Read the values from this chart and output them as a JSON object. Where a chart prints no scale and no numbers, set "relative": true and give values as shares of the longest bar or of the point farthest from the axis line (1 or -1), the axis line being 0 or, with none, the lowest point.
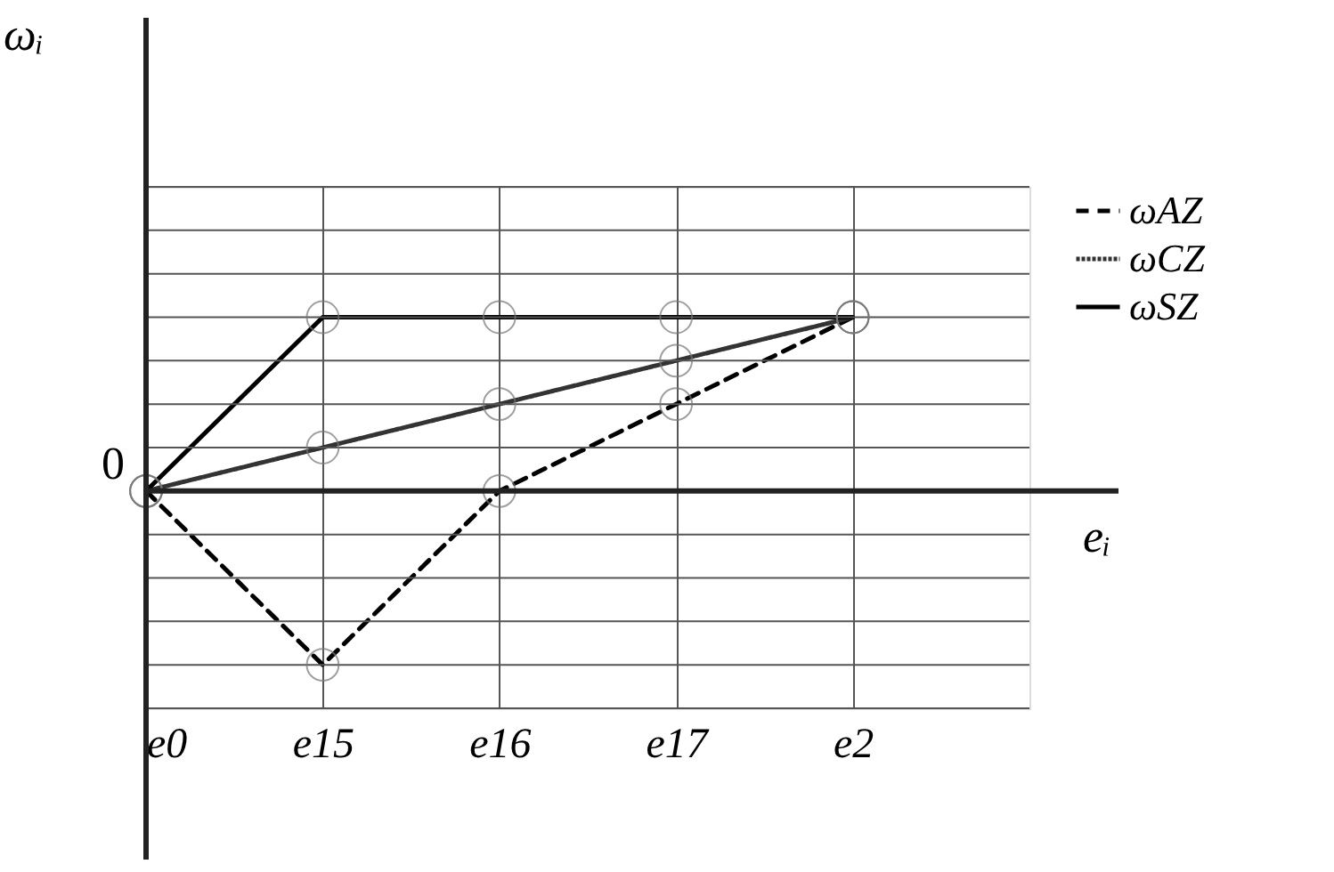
{
  "chart_data": {
    "type": "line",
    "relative": true,
    "xlabel": "eᵢ",
    "ylabel": "ωᵢ",
    "categories": [
      "e0",
      "e15",
      "e16",
      "e17",
      "e2"
    ],
    "ylim": [
      -1.25,
      1.75
    ],
    "annotations": [
      "0"
    ],
    "grid": true,
    "legend": "top right",
    "marker": "circle",
    "series": [
      {
        "name": "ωAZ",
        "color": "#000000",
        "line_style": "dashed",
        "values": [
          0,
          -1,
          0,
          0.5,
          1
        ]
      },
      {
        "name": "ωCZ",
        "color": "#333333",
        "line_style": "dotted",
        "values": [
          0,
          0.25,
          0.5,
          0.75,
          1
        ]
      },
      {
        "name": "ωSZ",
        "color": "#000000",
        "line_style": "solid",
        "values": [
          0,
          1,
          1,
          1,
          1
        ]
      }
    ]
  }
}
